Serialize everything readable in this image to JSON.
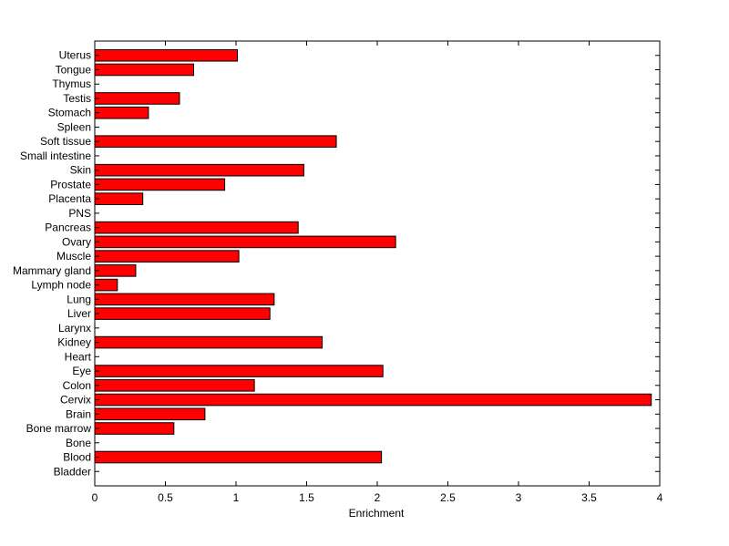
{
  "chart_data": {
    "type": "bar",
    "orientation": "horizontal",
    "title": "",
    "xlabel": "Enrichment",
    "ylabel": "",
    "xlim": [
      0,
      4
    ],
    "xticks": [
      "0",
      "0.5",
      "1",
      "1.5",
      "2",
      "2.5",
      "3",
      "3.5",
      "4"
    ],
    "grid": false,
    "bar_color": "#ff0000",
    "categories": [
      "Bladder",
      "Blood",
      "Bone",
      "Bone marrow",
      "Brain",
      "Cervix",
      "Colon",
      "Eye",
      "Heart",
      "Kidney",
      "Larynx",
      "Liver",
      "Lung",
      "Lymph node",
      "Mammary gland",
      "Muscle",
      "Ovary",
      "Pancreas",
      "PNS",
      "Placenta",
      "Prostate",
      "Skin",
      "Small intestine",
      "Soft tissue",
      "Spleen",
      "Stomach",
      "Testis",
      "Thymus",
      "Tongue",
      "Uterus"
    ],
    "values": [
      0,
      2.03,
      0,
      0.56,
      0.78,
      3.94,
      1.13,
      2.04,
      0,
      1.61,
      0,
      1.24,
      1.27,
      0.16,
      0.29,
      1.02,
      2.13,
      1.44,
      0,
      0.34,
      0.92,
      1.48,
      0,
      1.71,
      0,
      0.38,
      0.6,
      0,
      0.7,
      1.01
    ]
  }
}
